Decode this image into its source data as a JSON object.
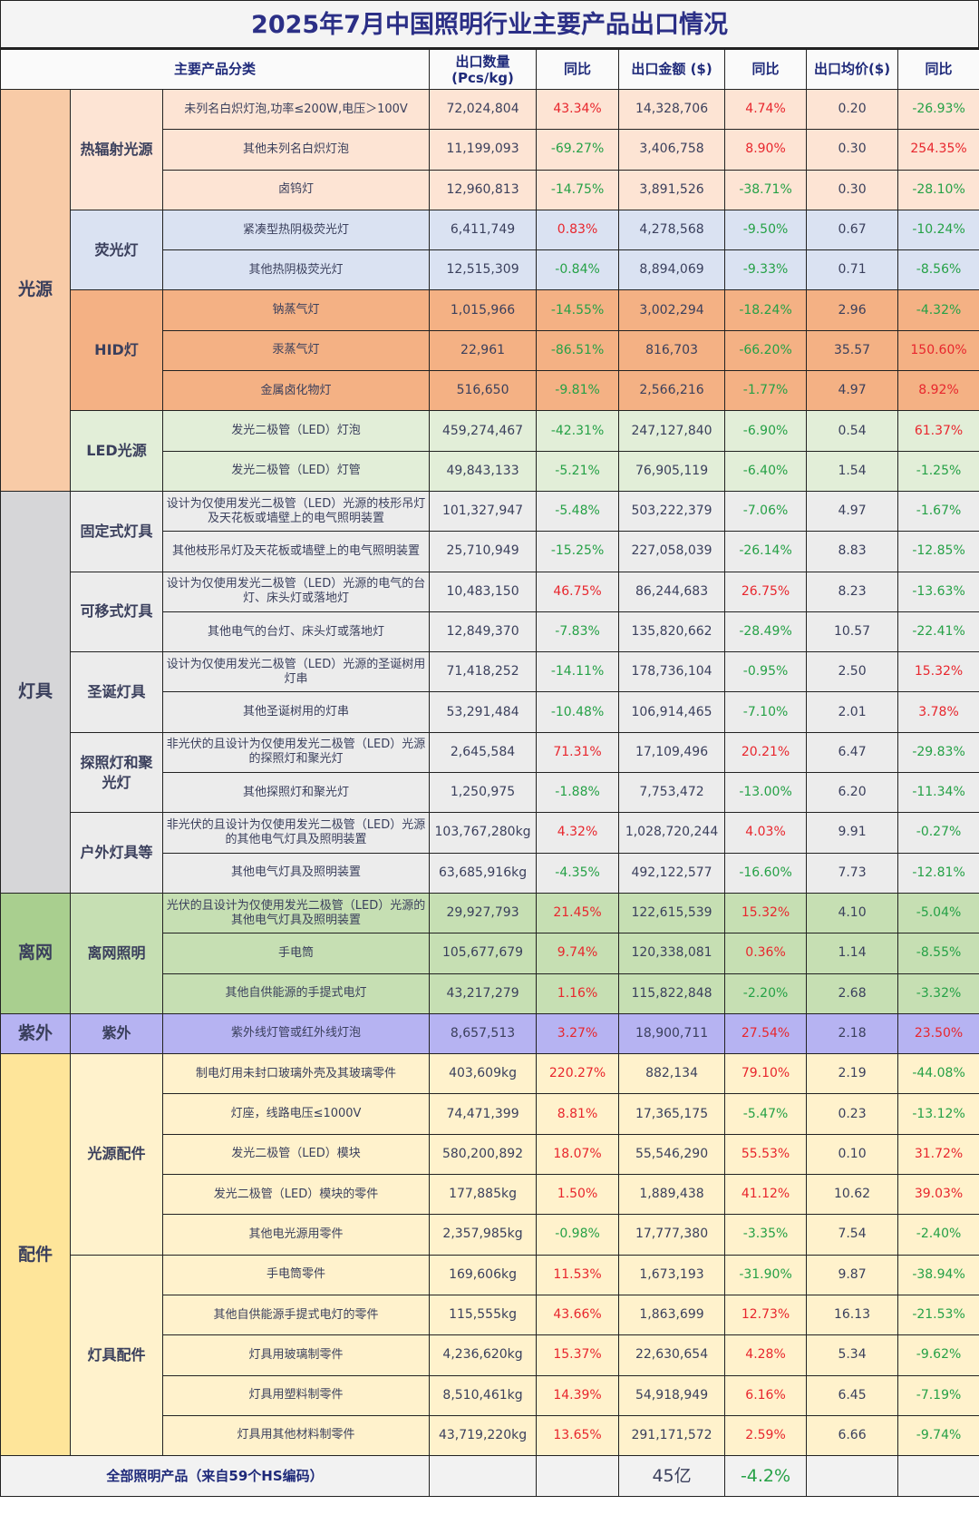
{
  "title": "2025年7月中国照明行业主要产品出口情况",
  "colors": {
    "positive": "#e8262d",
    "negative": "#25a146",
    "text": "#3a3f5c",
    "title": "#2b2f86"
  },
  "header": {
    "category": "主要产品分类",
    "qty": "出口数量\n(Pcs/kg)",
    "qty_yoy": "同比",
    "value": "出口金额 ($)",
    "value_yoy": "同比",
    "price": "出口均价($)",
    "price_yoy": "同比"
  },
  "groups": [
    {
      "label": "光源",
      "color": "#f8cba7",
      "subgroups": [
        {
          "label": "热辐射光源",
          "color": "#fde4d4",
          "rows": [
            [
              "未列名白炽灯泡,功率≤200W,电压＞100V",
              "72,024,804",
              "43.34%",
              "14,328,706",
              "4.74%",
              "0.20",
              "-26.93%"
            ],
            [
              "其他未列名白炽灯泡",
              "11,199,093",
              "-69.27%",
              "3,406,758",
              "8.90%",
              "0.30",
              "254.35%"
            ],
            [
              "卤钨灯",
              "12,960,813",
              "-14.75%",
              "3,891,526",
              "-38.71%",
              "0.30",
              "-28.10%"
            ]
          ]
        },
        {
          "label": "荧光灯",
          "color": "#dae2f2",
          "rows": [
            [
              "紧凑型热阴极荧光灯",
              "6,411,749",
              "0.83%",
              "4,278,568",
              "-9.50%",
              "0.67",
              "-10.24%"
            ],
            [
              "其他热阴极荧光灯",
              "12,515,309",
              "-0.84%",
              "8,894,069",
              "-9.33%",
              "0.71",
              "-8.56%"
            ]
          ]
        },
        {
          "label": "HID灯",
          "color": "#f4b184",
          "rows": [
            [
              "钠蒸气灯",
              "1,015,966",
              "-14.55%",
              "3,002,294",
              "-18.24%",
              "2.96",
              "-4.32%"
            ],
            [
              "汞蒸气灯",
              "22,961",
              "-86.51%",
              "816,703",
              "-66.20%",
              "35.57",
              "150.60%"
            ],
            [
              "金属卤化物灯",
              "516,650",
              "-9.81%",
              "2,566,216",
              "-1.77%",
              "4.97",
              "8.92%"
            ]
          ]
        },
        {
          "label": "LED光源",
          "color": "#e2eed8",
          "rows": [
            [
              "发光二极管（LED）灯泡",
              "459,274,467",
              "-42.31%",
              "247,127,840",
              "-6.90%",
              "0.54",
              "61.37%"
            ],
            [
              "发光二极管（LED）灯管",
              "49,843,133",
              "-5.21%",
              "76,905,119",
              "-6.40%",
              "1.54",
              "-1.25%"
            ]
          ]
        }
      ]
    },
    {
      "label": "灯具",
      "color": "#d6d6d8",
      "subgroups": [
        {
          "label": "固定式灯具",
          "color": "#ececec",
          "rows": [
            [
              "设计为仅使用发光二极管（LED）光源的枝形吊灯及天花板或墙壁上的电气照明装置",
              "101,327,947",
              "-5.48%",
              "503,222,379",
              "-7.06%",
              "4.97",
              "-1.67%"
            ],
            [
              "其他枝形吊灯及天花板或墙壁上的电气照明装置",
              "25,710,949",
              "-15.25%",
              "227,058,039",
              "-26.14%",
              "8.83",
              "-12.85%"
            ]
          ]
        },
        {
          "label": "可移式灯具",
          "color": "#ececec",
          "rows": [
            [
              "设计为仅使用发光二极管（LED）光源的电气的台灯、床头灯或落地灯",
              "10,483,150",
              "46.75%",
              "86,244,683",
              "26.75%",
              "8.23",
              "-13.63%"
            ],
            [
              "其他电气的台灯、床头灯或落地灯",
              "12,849,370",
              "-7.83%",
              "135,820,662",
              "-28.49%",
              "10.57",
              "-22.41%"
            ]
          ]
        },
        {
          "label": "圣诞灯具",
          "color": "#ececec",
          "rows": [
            [
              "设计为仅使用发光二极管（LED）光源的圣诞树用灯串",
              "71,418,252",
              "-14.11%",
              "178,736,104",
              "-0.95%",
              "2.50",
              "15.32%"
            ],
            [
              "其他圣诞树用的灯串",
              "53,291,484",
              "-10.48%",
              "106,914,465",
              "-7.10%",
              "2.01",
              "3.78%"
            ]
          ]
        },
        {
          "label": "探照灯和聚光灯",
          "color": "#ececec",
          "rows": [
            [
              "非光伏的且设计为仅使用发光二极管（LED）光源的探照灯和聚光灯",
              "2,645,584",
              "71.31%",
              "17,109,496",
              "20.21%",
              "6.47",
              "-29.83%"
            ],
            [
              "其他探照灯和聚光灯",
              "1,250,975",
              "-1.88%",
              "7,753,472",
              "-13.00%",
              "6.20",
              "-11.34%"
            ]
          ]
        },
        {
          "label": "户外灯具等",
          "color": "#ececec",
          "rows": [
            [
              "非光伏的且设计为仅使用发光二极管（LED）光源的其他电气灯具及照明装置",
              "103,767,280kg",
              "4.32%",
              "1,028,720,244",
              "4.03%",
              "9.91",
              "-0.27%"
            ],
            [
              "其他电气灯具及照明装置",
              "63,685,916kg",
              "-4.35%",
              "492,122,577",
              "-16.60%",
              "7.73",
              "-12.81%"
            ]
          ]
        }
      ]
    },
    {
      "label": "离网",
      "color": "#a9cf8f",
      "subgroups": [
        {
          "label": "离网照明",
          "color": "#c6dfb3",
          "rows": [
            [
              "光伏的且设计为仅使用发光二极管（LED）光源的其他电气灯具及照明装置",
              "29,927,793",
              "21.45%",
              "122,615,539",
              "15.32%",
              "4.10",
              "-5.04%"
            ],
            [
              "手电筒",
              "105,677,679",
              "9.74%",
              "120,338,081",
              "0.36%",
              "1.14",
              "-8.55%"
            ],
            [
              "其他自供能源的手提式电灯",
              "43,217,279",
              "1.16%",
              "115,822,848",
              "-2.20%",
              "2.68",
              "-3.32%"
            ]
          ]
        }
      ]
    },
    {
      "label": "紫外",
      "color": "#b6b3f2",
      "subgroups": [
        {
          "label": "紫外",
          "color": "#b6b3f2",
          "rows": [
            [
              "紫外线灯管或红外线灯泡",
              "8,657,513",
              "3.27%",
              "18,900,711",
              "27.54%",
              "2.18",
              "23.50%"
            ]
          ]
        }
      ]
    },
    {
      "label": "配件",
      "color": "#fee59a",
      "subgroups": [
        {
          "label": "光源配件",
          "color": "#fff2cc",
          "rows": [
            [
              "制电灯用未封口玻璃外壳及其玻璃零件",
              "403,609kg",
              "220.27%",
              "882,134",
              "79.10%",
              "2.19",
              "-44.08%"
            ],
            [
              "灯座，线路电压≤1000V",
              "74,471,399",
              "8.81%",
              "17,365,175",
              "-5.47%",
              "0.23",
              "-13.12%"
            ],
            [
              "发光二极管（LED）模块",
              "580,200,892",
              "18.07%",
              "55,546,290",
              "55.53%",
              "0.10",
              "31.72%"
            ],
            [
              "发光二极管（LED）模块的零件",
              "177,885kg",
              "1.50%",
              "1,889,438",
              "41.12%",
              "10.62",
              "39.03%"
            ],
            [
              "其他电光源用零件",
              "2,357,985kg",
              "-0.98%",
              "17,777,380",
              "-3.35%",
              "7.54",
              "-2.40%"
            ]
          ]
        },
        {
          "label": "灯具配件",
          "color": "#fff2cc",
          "rows": [
            [
              "手电筒零件",
              "169,606kg",
              "11.53%",
              "1,673,193",
              "-31.90%",
              "9.87",
              "-38.94%"
            ],
            [
              "其他自供能源手提式电灯的零件",
              "115,555kg",
              "43.66%",
              "1,863,699",
              "12.73%",
              "16.13",
              "-21.53%"
            ],
            [
              "灯具用玻璃制零件",
              "4,236,620kg",
              "15.37%",
              "22,630,654",
              "4.28%",
              "5.34",
              "-9.62%"
            ],
            [
              "灯具用塑料制零件",
              "8,510,461kg",
              "14.39%",
              "54,918,949",
              "6.16%",
              "6.45",
              "-7.19%"
            ],
            [
              "灯具用其他材料制零件",
              "43,719,220kg",
              "13.65%",
              "291,171,572",
              "2.59%",
              "6.66",
              "-9.74%"
            ]
          ]
        }
      ]
    }
  ],
  "total": {
    "label": "全部照明产品（来自59个HS编码）",
    "value": "45亿",
    "value_yoy": "-4.2%"
  }
}
